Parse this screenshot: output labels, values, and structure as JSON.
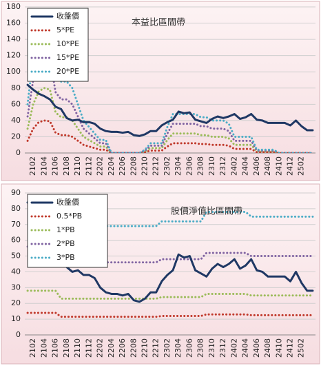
{
  "chart_data": [
    {
      "type": "line",
      "title": "本益比區間帶",
      "categories": [
        null,
        "2102",
        null,
        "2104",
        null,
        "2106",
        null,
        "2108",
        null,
        "2110",
        null,
        "2112",
        null,
        "2202",
        null,
        "2204",
        null,
        "2206",
        null,
        "2208",
        null,
        "2210",
        null,
        "2212",
        null,
        "2302",
        null,
        "2304",
        null,
        "2306",
        null,
        "2308",
        null,
        "2310",
        null,
        "2312",
        null,
        "2402",
        null,
        "2404",
        null,
        "2406",
        null,
        "2408",
        null,
        "2410",
        null,
        "2412",
        null,
        "2502",
        null,
        null
      ],
      "ylim": [
        0,
        180
      ],
      "yticks": [
        0,
        20,
        40,
        60,
        80,
        100,
        120,
        140,
        160,
        180
      ],
      "grid": true,
      "legend": "upper left",
      "series": [
        {
          "name": "收盤價",
          "color": "#1f3864",
          "values": [
            84,
            78,
            73,
            70,
            66,
            57,
            54,
            43,
            40,
            41,
            38,
            38,
            36,
            30,
            27,
            26,
            26,
            25,
            26,
            22,
            21,
            23,
            27,
            27,
            34,
            38,
            41,
            51,
            49,
            50,
            41,
            39,
            37,
            42,
            45,
            43,
            45,
            48,
            42,
            44,
            48,
            41,
            40,
            37,
            37,
            37,
            37,
            34,
            40,
            33,
            28,
            28
          ]
        },
        {
          "name": "5*PE",
          "color": "#c0392b",
          "values": [
            15,
            30,
            38,
            40,
            39,
            25,
            22,
            22,
            20,
            15,
            10,
            8,
            6,
            4,
            4,
            0,
            0,
            0,
            0,
            0,
            0,
            1,
            3,
            3,
            3,
            8,
            12,
            12,
            12,
            12,
            12,
            11,
            11,
            10,
            10,
            10,
            9,
            5,
            5,
            5,
            5,
            1,
            1,
            1,
            1,
            0,
            0,
            0,
            0,
            0,
            0,
            0
          ]
        },
        {
          "name": "10*PE",
          "color": "#9bbb59",
          "values": [
            30,
            60,
            76,
            80,
            78,
            50,
            44,
            44,
            40,
            30,
            20,
            16,
            12,
            8,
            8,
            0,
            0,
            0,
            0,
            0,
            0,
            2,
            6,
            6,
            6,
            16,
            24,
            24,
            24,
            24,
            24,
            22,
            22,
            20,
            20,
            20,
            18,
            10,
            10,
            10,
            10,
            2,
            2,
            2,
            2,
            0,
            0,
            0,
            0,
            0,
            0,
            0
          ]
        },
        {
          "name": "15*PE",
          "color": "#8064a2",
          "values": [
            45,
            90,
            114,
            120,
            117,
            75,
            66,
            66,
            60,
            45,
            30,
            24,
            18,
            12,
            12,
            0,
            0,
            0,
            0,
            0,
            0,
            3,
            9,
            9,
            9,
            24,
            36,
            36,
            36,
            36,
            36,
            33,
            33,
            30,
            30,
            30,
            27,
            15,
            15,
            15,
            15,
            3,
            3,
            3,
            3,
            0,
            0,
            0,
            0,
            0,
            0,
            0
          ]
        },
        {
          "name": "20*PE",
          "color": "#4bacc6",
          "values": [
            60,
            120,
            152,
            160,
            156,
            100,
            88,
            88,
            80,
            60,
            40,
            32,
            24,
            16,
            16,
            0,
            0,
            0,
            0,
            0,
            0,
            4,
            12,
            12,
            12,
            32,
            48,
            48,
            48,
            48,
            48,
            44,
            44,
            40,
            40,
            40,
            36,
            20,
            20,
            20,
            20,
            4,
            4,
            4,
            4,
            0,
            0,
            0,
            0,
            0,
            0,
            0
          ]
        }
      ]
    },
    {
      "type": "line",
      "title": "股價淨值比區間帶",
      "categories": [
        null,
        "2102",
        null,
        "2104",
        null,
        "2106",
        null,
        "2108",
        null,
        "2110",
        null,
        "2112",
        null,
        "2202",
        null,
        "2204",
        null,
        "2206",
        null,
        "2208",
        null,
        "2210",
        null,
        "2212",
        null,
        "2302",
        null,
        "2304",
        null,
        "2306",
        null,
        "2308",
        null,
        "2310",
        null,
        "2312",
        null,
        "2402",
        null,
        "2404",
        null,
        "2406",
        null,
        "2408",
        null,
        "2410",
        null,
        "2412",
        null,
        "2502",
        null,
        null
      ],
      "ylim": [
        0,
        90
      ],
      "yticks": [
        0,
        10,
        20,
        30,
        40,
        50,
        60,
        70,
        80,
        90
      ],
      "grid": true,
      "legend": "upper left",
      "series": [
        {
          "name": "收盤價",
          "color": "#1f3864",
          "values": [
            84,
            78,
            73,
            70,
            66,
            57,
            54,
            43,
            40,
            41,
            38,
            38,
            36,
            30,
            27,
            26,
            26,
            25,
            26,
            22,
            21,
            23,
            27,
            27,
            34,
            38,
            41,
            51,
            49,
            50,
            41,
            39,
            37,
            42,
            45,
            43,
            45,
            48,
            42,
            44,
            48,
            41,
            40,
            37,
            37,
            37,
            37,
            34,
            40,
            33,
            28,
            28
          ]
        },
        {
          "name": "0.5*PB",
          "color": "#c0392b",
          "values": [
            14,
            14,
            14,
            14,
            14,
            14,
            11.5,
            11.5,
            11.5,
            11.5,
            11.5,
            11.5,
            11.5,
            11.5,
            11.5,
            11.5,
            11.5,
            11.5,
            11.5,
            11.5,
            11.5,
            11.5,
            11.5,
            11.5,
            12,
            12,
            12,
            12,
            12,
            12,
            12,
            12,
            13,
            13,
            13,
            13,
            13,
            13,
            13,
            13,
            12.5,
            12.5,
            12.5,
            12.5,
            12.5,
            12.5,
            12.5,
            12.5,
            12.5,
            12.5,
            12.5,
            12.5
          ]
        },
        {
          "name": "1*PB",
          "color": "#9bbb59",
          "values": [
            28,
            28,
            28,
            28,
            28,
            28,
            23,
            23,
            23,
            23,
            23,
            23,
            23,
            23,
            23,
            23,
            23,
            23,
            23,
            23,
            23,
            23,
            23,
            23,
            24,
            24,
            24,
            24,
            24,
            24,
            24,
            24,
            26,
            26,
            26,
            26,
            26,
            26,
            26,
            26,
            25,
            25,
            25,
            25,
            25,
            25,
            25,
            25,
            25,
            25,
            25,
            25
          ]
        },
        {
          "name": "2*PB",
          "color": "#8064a2",
          "values": [
            56,
            56,
            56,
            56,
            56,
            56,
            46,
            46,
            46,
            46,
            46,
            46,
            46,
            46,
            46,
            46,
            46,
            46,
            46,
            46,
            46,
            46,
            46,
            46,
            48,
            48,
            48,
            48,
            48,
            48,
            48,
            48,
            52,
            52,
            52,
            52,
            52,
            52,
            52,
            52,
            50,
            50,
            50,
            50,
            50,
            50,
            50,
            50,
            50,
            50,
            50,
            50
          ]
        },
        {
          "name": "3*PB",
          "color": "#4bacc6",
          "values": [
            84,
            84,
            84,
            84,
            84,
            84,
            69,
            69,
            69,
            69,
            69,
            69,
            69,
            69,
            69,
            69,
            69,
            69,
            69,
            69,
            69,
            69,
            69,
            69,
            72,
            72,
            72,
            72,
            72,
            72,
            72,
            72,
            78,
            78,
            78,
            78,
            78,
            78,
            78,
            78,
            75,
            75,
            75,
            75,
            75,
            75,
            75,
            75,
            75,
            75,
            75,
            75
          ]
        }
      ]
    }
  ]
}
